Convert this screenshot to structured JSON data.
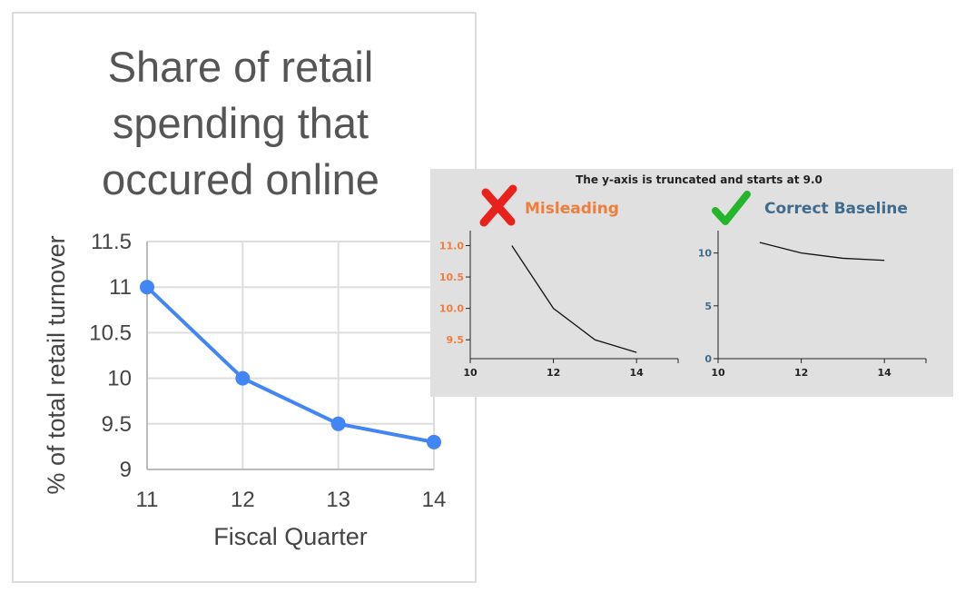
{
  "chart_data": [
    {
      "type": "line",
      "title_lines": [
        "Share of retail",
        "spending that",
        "occured online"
      ],
      "xlabel": "Fiscal Quarter",
      "ylabel": "% of total retail turnover",
      "x": [
        11,
        12,
        13,
        14
      ],
      "y": [
        11,
        10,
        9.5,
        9.3
      ],
      "xlim": [
        11,
        14
      ],
      "ylim": [
        9,
        11.5
      ],
      "xticks": [
        "11",
        "12",
        "13",
        "14"
      ],
      "yticks": [
        "11.5",
        "11",
        "10.5",
        "10",
        "9.5",
        "9"
      ],
      "grid": true,
      "color": "#4285f4"
    },
    {
      "type": "line",
      "title": "Misleading",
      "x": [
        11,
        12,
        13,
        14
      ],
      "y": [
        11.0,
        10.0,
        9.5,
        9.3
      ],
      "xlim": [
        10,
        15
      ],
      "ylim": [
        9.2,
        11.05
      ],
      "xticks": [
        "10",
        "12",
        "14"
      ],
      "yticks": [
        "11.0",
        "10.5",
        "10.0",
        "9.5"
      ],
      "tick_color": "#f07d3c",
      "title_color": "#f07d3c"
    },
    {
      "type": "line",
      "title": "Correct Baseline",
      "x": [
        11,
        12,
        13,
        14
      ],
      "y": [
        11.0,
        10.0,
        9.5,
        9.3
      ],
      "xlim": [
        10,
        15
      ],
      "ylim": [
        0,
        11.0
      ],
      "xticks": [
        "10",
        "12",
        "14"
      ],
      "yticks": [
        "10",
        "5",
        "0"
      ],
      "tick_color": "#3f6b8c",
      "title_color": "#3f6b8c"
    }
  ],
  "inset": {
    "caption": "The y-axis is truncated and starts at 9.0",
    "misleading_icon": "cross-icon",
    "correct_icon": "checkmark-icon",
    "cross_color": "#e8211c",
    "check_color": "#25b52b"
  }
}
